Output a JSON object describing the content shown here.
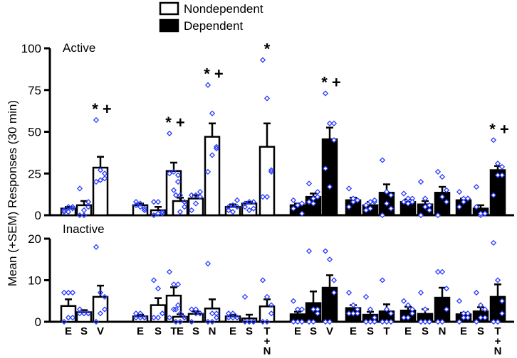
{
  "chart_data": {
    "type": "bar",
    "ylabel": "Mean (+SEM) Responses (30 min)",
    "legend": {
      "placement": "top-center",
      "entries": [
        {
          "name": "Nondependent",
          "fill": "#ffffff"
        },
        {
          "name": "Dependent",
          "fill": "#000000"
        }
      ]
    },
    "point_color": "#2a3cff",
    "categories": [
      "E",
      "S",
      "V",
      "E",
      "S",
      "T",
      "E",
      "S",
      "N",
      "E",
      "S",
      "T+N",
      "E",
      "S",
      "V",
      "E",
      "S",
      "T",
      "E",
      "S",
      "N",
      "E",
      "S",
      "T+N"
    ],
    "category_labels": [
      [
        "E"
      ],
      [
        "S"
      ],
      [
        "V"
      ],
      [
        "E"
      ],
      [
        "S"
      ],
      [
        "T"
      ],
      [
        "E"
      ],
      [
        "S"
      ],
      [
        "N"
      ],
      [
        "E"
      ],
      [
        "S"
      ],
      [
        "T",
        "+",
        "N"
      ],
      [
        "E"
      ],
      [
        "S"
      ],
      [
        "V"
      ],
      [
        "E"
      ],
      [
        "S"
      ],
      [
        "T"
      ],
      [
        "E"
      ],
      [
        "S"
      ],
      [
        "N"
      ],
      [
        "E"
      ],
      [
        "S"
      ],
      [
        "T",
        "+",
        "N"
      ]
    ],
    "group": [
      "Nondependent",
      "Nondependent",
      "Nondependent",
      "Nondependent",
      "Nondependent",
      "Nondependent",
      "Nondependent",
      "Nondependent",
      "Nondependent",
      "Nondependent",
      "Nondependent",
      "Nondependent",
      "Dependent",
      "Dependent",
      "Dependent",
      "Dependent",
      "Dependent",
      "Dependent",
      "Dependent",
      "Dependent",
      "Dependent",
      "Dependent",
      "Dependent",
      "Dependent"
    ],
    "panels": [
      {
        "title": "Active",
        "ylim": [
          0,
          100
        ],
        "yticks": [
          "0",
          "25",
          "50",
          "75",
          "100"
        ],
        "means": [
          4,
          6,
          28.5,
          6,
          3,
          26.5,
          8.5,
          10,
          47,
          5,
          7,
          41,
          6,
          11,
          45.5,
          9,
          6,
          13.5,
          8,
          6.5,
          13.5,
          9,
          4,
          27
        ],
        "sem": [
          1,
          2.5,
          6.5,
          1,
          2,
          5,
          2,
          2,
          8,
          1.5,
          1,
          14,
          1,
          2,
          7,
          1.5,
          2,
          5,
          1.5,
          2,
          3.5,
          1,
          2,
          2.5
        ],
        "annotations": [
          "",
          "",
          "* +",
          "",
          "",
          "* +",
          "",
          "",
          "* +",
          "",
          "",
          "*",
          "",
          "",
          "* +",
          "",
          "",
          "",
          "",
          "",
          "",
          "",
          "",
          "* +"
        ],
        "points": [
          [
            2,
            5,
            5,
            4,
            2,
            3
          ],
          [
            0,
            0,
            8,
            5,
            3,
            16
          ],
          [
            57,
            27,
            25,
            22,
            21,
            20
          ],
          [
            8,
            5,
            3,
            4,
            7,
            6
          ],
          [
            0,
            1,
            1,
            2,
            8,
            8
          ],
          [
            49,
            26,
            24,
            20,
            15,
            25
          ],
          [
            12,
            12,
            5,
            8,
            2,
            12
          ],
          [
            3,
            7,
            11,
            14,
            12,
            12
          ],
          [
            78,
            61,
            40,
            41,
            36,
            26
          ],
          [
            5,
            2,
            5,
            9,
            6,
            3
          ],
          [
            7,
            3,
            4,
            8,
            8,
            5
          ],
          [
            93,
            70,
            26,
            27,
            11,
            11
          ],
          [
            4,
            6,
            7,
            1,
            6,
            9
          ],
          [
            8,
            10,
            14,
            11,
            7,
            19
          ],
          [
            73,
            55,
            55,
            45,
            17,
            28
          ],
          [
            16,
            8,
            9,
            9,
            10,
            5
          ],
          [
            3,
            4,
            8,
            9,
            8,
            6
          ],
          [
            33,
            14,
            12,
            4,
            7,
            0
          ],
          [
            13,
            10,
            10,
            8,
            7,
            8
          ],
          [
            20,
            10,
            6,
            3,
            5,
            0
          ],
          [
            26,
            23,
            15,
            8,
            11,
            0
          ],
          [
            14,
            10,
            10,
            10,
            8,
            5
          ],
          [
            17,
            0,
            1,
            1,
            1,
            5
          ],
          [
            45,
            31,
            29,
            24,
            24,
            12
          ]
        ]
      },
      {
        "title": "Inactive",
        "ylim": [
          0,
          20
        ],
        "yticks": [
          "0",
          "10",
          "20"
        ],
        "means": [
          3.8,
          2.3,
          6,
          1.3,
          4,
          6.3,
          1.2,
          1.9,
          3.2,
          1.3,
          0.8,
          3.7,
          1.8,
          4.5,
          8.2,
          3.3,
          1.7,
          2.5,
          2.7,
          1.9,
          5.8,
          1.8,
          2.5,
          6
        ],
        "sem": [
          1.6,
          0.5,
          2.7,
          0.4,
          1.7,
          2,
          0.6,
          0.6,
          2.2,
          0.4,
          0.9,
          1.7,
          0.6,
          2.8,
          3,
          0.7,
          0.7,
          1.7,
          0.9,
          1.1,
          2.4,
          0.4,
          1,
          3
        ],
        "annotations": [
          "",
          "",
          "",
          "",
          "",
          "",
          "",
          "",
          "",
          "",
          "",
          "",
          "",
          "",
          "",
          "",
          "",
          "",
          "",
          "",
          "",
          "",
          "",
          ""
        ],
        "points": [
          [
            7,
            7,
            7,
            1,
            1,
            0
          ],
          [
            3,
            2,
            2,
            2,
            2,
            2
          ],
          [
            18,
            7,
            6,
            3,
            2,
            0
          ],
          [
            2,
            2,
            1,
            1,
            1,
            1
          ],
          [
            10,
            8,
            2,
            2,
            1,
            1
          ],
          [
            12,
            9,
            9,
            4,
            3,
            1
          ],
          [
            3,
            2,
            1,
            1,
            0,
            0
          ],
          [
            3,
            3,
            2,
            2,
            2,
            0
          ],
          [
            14,
            2,
            2,
            1,
            0,
            0
          ],
          [
            2,
            2,
            1,
            1,
            1,
            1
          ],
          [
            6,
            0,
            0,
            0,
            0,
            0
          ],
          [
            10,
            6,
            4,
            2,
            0,
            0
          ],
          [
            5,
            3,
            3,
            0,
            0,
            0
          ],
          [
            17,
            3,
            3,
            2,
            0,
            0
          ],
          [
            17,
            15,
            10,
            7,
            0,
            0
          ],
          [
            7,
            4,
            3,
            2,
            2,
            2
          ],
          [
            6,
            3,
            1,
            0,
            0,
            0
          ],
          [
            10,
            3,
            2,
            0,
            0,
            0
          ],
          [
            5,
            4,
            3,
            2,
            1,
            1
          ],
          [
            7,
            3,
            0,
            0,
            0,
            0
          ],
          [
            12,
            12,
            8,
            3,
            0,
            0
          ],
          [
            5,
            2,
            2,
            1,
            1,
            0
          ],
          [
            7,
            4,
            3,
            1,
            1,
            0
          ],
          [
            19,
            10,
            5,
            2,
            0,
            0
          ]
        ]
      }
    ]
  }
}
